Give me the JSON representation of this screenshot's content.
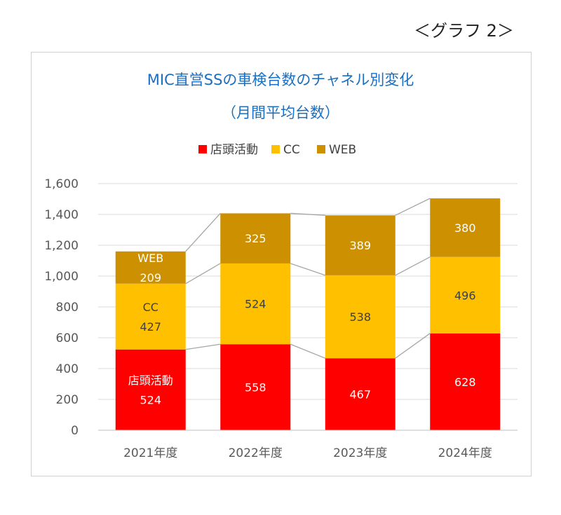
{
  "caption": "＜グラフ 2＞",
  "chart_data": {
    "type": "bar",
    "stacked": true,
    "title": "MIC直営SSの車検台数のチャネル別変化",
    "subtitle": "（月間平均台数）",
    "categories": [
      "2021年度",
      "2022年度",
      "2023年度",
      "2024年度"
    ],
    "series": [
      {
        "name": "店頭活動",
        "color": "#FF0000",
        "values": [
          524,
          558,
          467,
          628
        ],
        "label_color": "#ffffff"
      },
      {
        "name": "CC",
        "color": "#FFC000",
        "values": [
          427,
          524,
          538,
          496
        ],
        "label_color": "#404040"
      },
      {
        "name": "WEB",
        "color": "#CC9000",
        "values": [
          209,
          325,
          389,
          380
        ],
        "label_color": "#ffffff"
      }
    ],
    "yticks": [
      "0",
      "200",
      "400",
      "600",
      "800",
      "1,000",
      "1,200",
      "1,400",
      "1,600"
    ],
    "ylim": [
      0,
      1600
    ],
    "grid": true,
    "legend": "top",
    "series_lines": true
  }
}
